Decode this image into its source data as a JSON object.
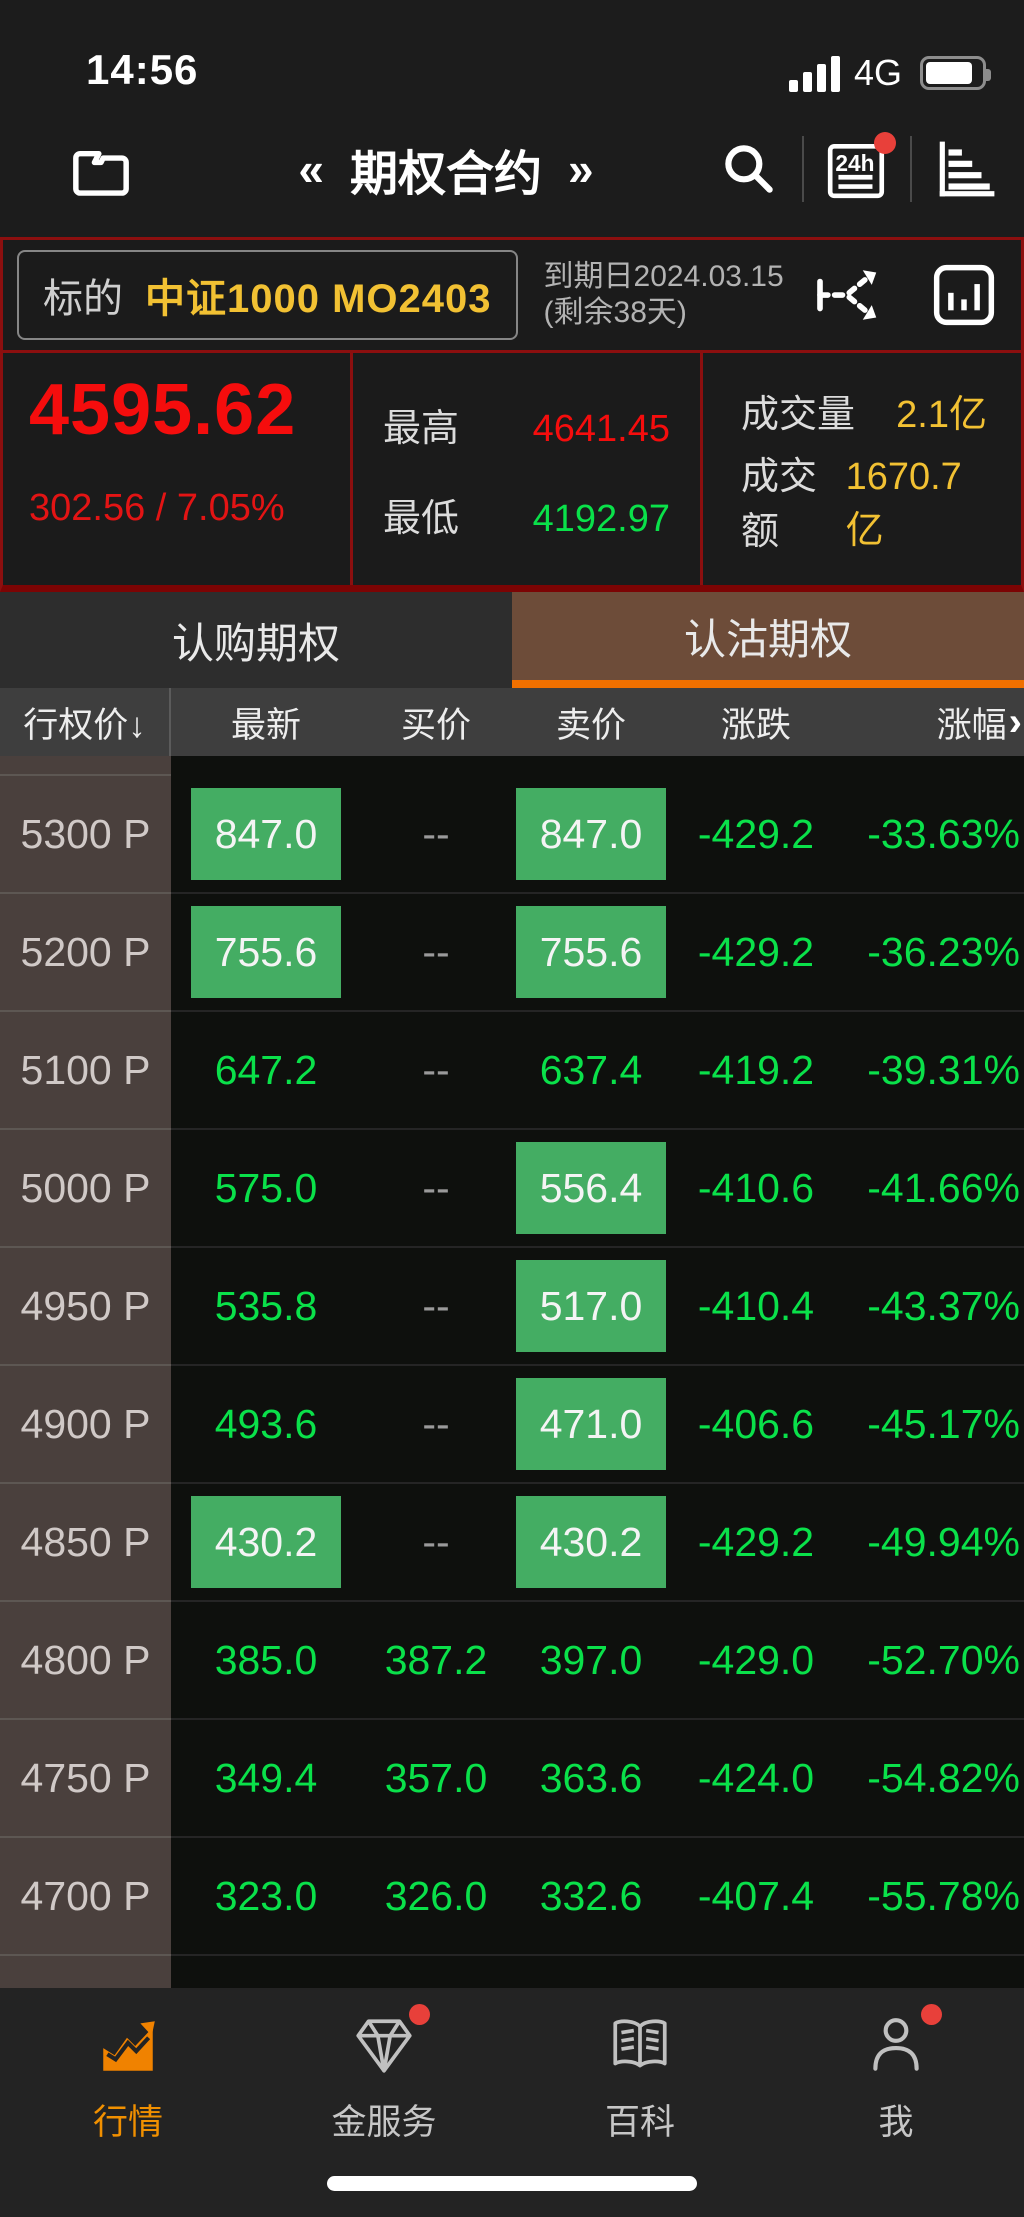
{
  "status_bar": {
    "time": "14:56",
    "network": "4G"
  },
  "header": {
    "prev_arrow": "«",
    "title": "期权合约",
    "next_arrow": "»"
  },
  "underlying": {
    "label": "标的",
    "name": "中证1000 MO2403",
    "expiry_line1": "到期日2024.03.15",
    "expiry_line2": "(剩余38天)"
  },
  "quote": {
    "last": "4595.62",
    "change": "302.56 / 7.05%",
    "high_label": "最高",
    "high": "4641.45",
    "low_label": "最低",
    "low": "4192.97",
    "volume_label": "成交量",
    "volume": "2.1亿",
    "turnover_label": "成交额",
    "turnover": "1670.7亿"
  },
  "tabs": [
    {
      "label": "认购期权",
      "active": false
    },
    {
      "label": "认沽期权",
      "active": true
    }
  ],
  "table": {
    "headers": [
      "行权价↓",
      "最新",
      "买价",
      "卖价",
      "涨跌",
      "涨幅"
    ],
    "more_indicator": "›",
    "rows": [
      {
        "strike": "5300 P",
        "last": "847.0",
        "last_boxed": true,
        "bid": "--",
        "ask": "847.0",
        "ask_boxed": true,
        "change": "-429.2",
        "pct": "-33.63%"
      },
      {
        "strike": "5200 P",
        "last": "755.6",
        "last_boxed": true,
        "bid": "--",
        "ask": "755.6",
        "ask_boxed": true,
        "change": "-429.2",
        "pct": "-36.23%"
      },
      {
        "strike": "5100 P",
        "last": "647.2",
        "last_boxed": false,
        "bid": "--",
        "ask": "637.4",
        "ask_boxed": false,
        "change": "-419.2",
        "pct": "-39.31%"
      },
      {
        "strike": "5000 P",
        "last": "575.0",
        "last_boxed": false,
        "bid": "--",
        "ask": "556.4",
        "ask_boxed": true,
        "change": "-410.6",
        "pct": "-41.66%"
      },
      {
        "strike": "4950 P",
        "last": "535.8",
        "last_boxed": false,
        "bid": "--",
        "ask": "517.0",
        "ask_boxed": true,
        "change": "-410.4",
        "pct": "-43.37%"
      },
      {
        "strike": "4900 P",
        "last": "493.6",
        "last_boxed": false,
        "bid": "--",
        "ask": "471.0",
        "ask_boxed": true,
        "change": "-406.6",
        "pct": "-45.17%"
      },
      {
        "strike": "4850 P",
        "last": "430.2",
        "last_boxed": true,
        "bid": "--",
        "ask": "430.2",
        "ask_boxed": true,
        "change": "-429.2",
        "pct": "-49.94%"
      },
      {
        "strike": "4800 P",
        "last": "385.0",
        "last_boxed": false,
        "bid": "387.2",
        "ask": "397.0",
        "ask_boxed": false,
        "change": "-429.0",
        "pct": "-52.70%"
      },
      {
        "strike": "4750 P",
        "last": "349.4",
        "last_boxed": false,
        "bid": "357.0",
        "ask": "363.6",
        "ask_boxed": false,
        "change": "-424.0",
        "pct": "-54.82%"
      },
      {
        "strike": "4700 P",
        "last": "323.0",
        "last_boxed": false,
        "bid": "326.0",
        "ask": "332.6",
        "ask_boxed": false,
        "change": "-407.4",
        "pct": "-55.78%"
      }
    ]
  },
  "bottom_nav": [
    {
      "label": "行情",
      "active": true,
      "badge": false
    },
    {
      "label": "金服务",
      "active": false,
      "badge": true
    },
    {
      "label": "百科",
      "active": false,
      "badge": false
    },
    {
      "label": "我",
      "active": false,
      "badge": true
    }
  ],
  "colors": {
    "up_red": "#f50d0d",
    "down_green": "#0ae14a",
    "box_green": "#44ad63",
    "gold": "#f2c133",
    "tab_underline": "#f07000",
    "badge_red": "#e8403a",
    "nav_active": "#f19000"
  }
}
